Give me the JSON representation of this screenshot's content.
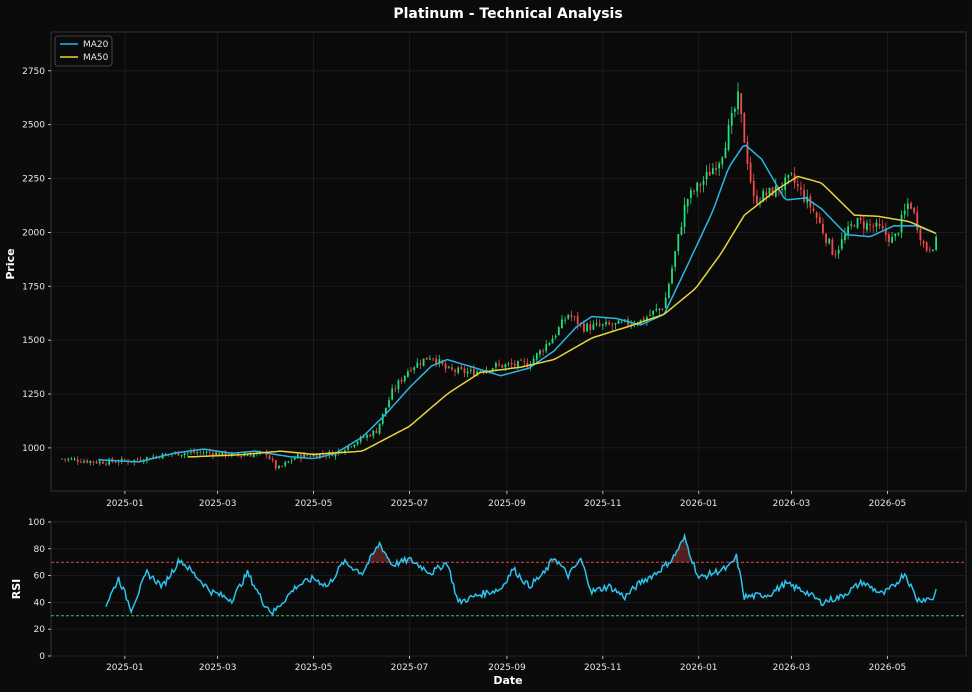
{
  "colors": {
    "background": "#0b0b0b",
    "panel": "#0a0a0a",
    "up": "#21e07a",
    "down": "#f24b4b",
    "ma20": "#29b6e6",
    "ma50": "#e6d43a",
    "rsi": "#29c4f0",
    "overbought": "#e04848",
    "oversold": "#28c878"
  },
  "chart_data": [
    {
      "type": "candlestick",
      "title": "Platinum - Technical Analysis",
      "ylabel": "Price",
      "xlabel": "",
      "x_range": [
        "2024-11-15",
        "2026-06-20"
      ],
      "ylim": [
        800,
        2930
      ],
      "y_ticks": [
        1000,
        1250,
        1500,
        1750,
        2000,
        2250,
        2500,
        2750
      ],
      "x_ticks": [
        "2025-01",
        "2025-03",
        "2025-05",
        "2025-07",
        "2025-09",
        "2025-11",
        "2026-01",
        "2026-03",
        "2026-05"
      ],
      "grid": true,
      "legend_position": "top-left",
      "legend": [
        "MA20",
        "MA50"
      ],
      "close_anchors": [
        [
          "2024-11-22",
          950
        ],
        [
          "2024-12-15",
          935
        ],
        [
          "2025-01-05",
          940
        ],
        [
          "2025-02-01",
          975
        ],
        [
          "2025-02-20",
          980
        ],
        [
          "2025-03-15",
          965
        ],
        [
          "2025-04-01",
          975
        ],
        [
          "2025-04-08",
          900
        ],
        [
          "2025-04-20",
          960
        ],
        [
          "2025-05-15",
          975
        ],
        [
          "2025-05-28",
          1030
        ],
        [
          "2025-06-10",
          1080
        ],
        [
          "2025-06-20",
          1260
        ],
        [
          "2025-07-01",
          1370
        ],
        [
          "2025-07-15",
          1430
        ],
        [
          "2025-07-25",
          1360
        ],
        [
          "2025-08-10",
          1350
        ],
        [
          "2025-08-25",
          1380
        ],
        [
          "2025-09-15",
          1390
        ],
        [
          "2025-10-01",
          1520
        ],
        [
          "2025-10-10",
          1620
        ],
        [
          "2025-10-20",
          1560
        ],
        [
          "2025-11-10",
          1570
        ],
        [
          "2025-11-25",
          1590
        ],
        [
          "2025-12-10",
          1660
        ],
        [
          "2025-12-24",
          2150
        ],
        [
          "2026-01-05",
          2250
        ],
        [
          "2026-01-15",
          2350
        ],
        [
          "2026-01-26",
          2620
        ],
        [
          "2026-02-05",
          2150
        ],
        [
          "2026-02-20",
          2200
        ],
        [
          "2026-03-01",
          2250
        ],
        [
          "2026-03-15",
          2100
        ],
        [
          "2026-03-28",
          1900
        ],
        [
          "2026-04-10",
          2050
        ],
        [
          "2026-04-25",
          2020
        ],
        [
          "2026-05-05",
          1960
        ],
        [
          "2026-05-15",
          2150
        ],
        [
          "2026-05-25",
          1920
        ],
        [
          "2026-06-01",
          1955
        ]
      ],
      "ma20_anchors": [
        [
          "2024-12-15",
          945
        ],
        [
          "2025-01-10",
          935
        ],
        [
          "2025-02-01",
          975
        ],
        [
          "2025-02-20",
          995
        ],
        [
          "2025-03-10",
          975
        ],
        [
          "2025-03-25",
          985
        ],
        [
          "2025-04-15",
          960
        ],
        [
          "2025-05-01",
          950
        ],
        [
          "2025-05-15",
          975
        ],
        [
          "2025-06-01",
          1050
        ],
        [
          "2025-06-15",
          1150
        ],
        [
          "2025-07-01",
          1280
        ],
        [
          "2025-07-15",
          1380
        ],
        [
          "2025-07-25",
          1410
        ],
        [
          "2025-08-10",
          1375
        ],
        [
          "2025-08-28",
          1335
        ],
        [
          "2025-09-15",
          1370
        ],
        [
          "2025-10-01",
          1450
        ],
        [
          "2025-10-15",
          1560
        ],
        [
          "2025-10-25",
          1610
        ],
        [
          "2025-11-10",
          1600
        ],
        [
          "2025-11-25",
          1570
        ],
        [
          "2025-12-10",
          1620
        ],
        [
          "2025-12-25",
          1850
        ],
        [
          "2026-01-10",
          2100
        ],
        [
          "2026-01-20",
          2300
        ],
        [
          "2026-01-30",
          2410
        ],
        [
          "2026-02-10",
          2340
        ],
        [
          "2026-02-25",
          2150
        ],
        [
          "2026-03-10",
          2160
        ],
        [
          "2026-03-20",
          2110
        ],
        [
          "2026-04-05",
          1990
        ],
        [
          "2026-04-20",
          1980
        ],
        [
          "2026-05-05",
          2030
        ],
        [
          "2026-05-20",
          2030
        ],
        [
          "2026-06-01",
          1995
        ]
      ],
      "ma50_anchors": [
        [
          "2025-02-10",
          958
        ],
        [
          "2025-03-15",
          968
        ],
        [
          "2025-04-10",
          985
        ],
        [
          "2025-05-01",
          970
        ],
        [
          "2025-06-01",
          985
        ],
        [
          "2025-07-01",
          1100
        ],
        [
          "2025-07-25",
          1250
        ],
        [
          "2025-08-15",
          1350
        ],
        [
          "2025-09-10",
          1375
        ],
        [
          "2025-10-01",
          1410
        ],
        [
          "2025-10-25",
          1510
        ],
        [
          "2025-11-20",
          1570
        ],
        [
          "2025-12-10",
          1620
        ],
        [
          "2025-12-30",
          1740
        ],
        [
          "2026-01-15",
          1900
        ],
        [
          "2026-01-30",
          2080
        ],
        [
          "2026-02-20",
          2200
        ],
        [
          "2026-03-05",
          2260
        ],
        [
          "2026-03-20",
          2230
        ],
        [
          "2026-04-10",
          2080
        ],
        [
          "2026-04-25",
          2075
        ],
        [
          "2026-05-15",
          2050
        ],
        [
          "2026-06-01",
          1995
        ]
      ]
    },
    {
      "type": "line",
      "title": "",
      "ylabel": "RSI",
      "xlabel": "Date",
      "ylim": [
        0,
        100
      ],
      "y_ticks": [
        0,
        20,
        40,
        60,
        80,
        100
      ],
      "x_ticks": [
        "2025-01",
        "2025-03",
        "2025-05",
        "2025-07",
        "2025-09",
        "2025-11",
        "2026-01",
        "2026-03",
        "2026-05"
      ],
      "overbought": 70,
      "oversold": 30,
      "grid": true,
      "rsi_anchors": [
        [
          "2024-12-20",
          38
        ],
        [
          "2024-12-28",
          58
        ],
        [
          "2025-01-05",
          35
        ],
        [
          "2025-01-15",
          62
        ],
        [
          "2025-01-25",
          52
        ],
        [
          "2025-02-05",
          72
        ],
        [
          "2025-02-15",
          60
        ],
        [
          "2025-02-25",
          48
        ],
        [
          "2025-03-10",
          42
        ],
        [
          "2025-03-20",
          62
        ],
        [
          "2025-03-30",
          40
        ],
        [
          "2025-04-05",
          32
        ],
        [
          "2025-04-20",
          52
        ],
        [
          "2025-05-01",
          58
        ],
        [
          "2025-05-10",
          52
        ],
        [
          "2025-05-20",
          70
        ],
        [
          "2025-06-01",
          62
        ],
        [
          "2025-06-12",
          84
        ],
        [
          "2025-06-20",
          68
        ],
        [
          "2025-07-01",
          72
        ],
        [
          "2025-07-15",
          62
        ],
        [
          "2025-07-25",
          70
        ],
        [
          "2025-08-01",
          40
        ],
        [
          "2025-08-15",
          46
        ],
        [
          "2025-08-28",
          50
        ],
        [
          "2025-09-05",
          65
        ],
        [
          "2025-09-15",
          52
        ],
        [
          "2025-09-25",
          62
        ],
        [
          "2025-10-01",
          74
        ],
        [
          "2025-10-10",
          60
        ],
        [
          "2025-10-18",
          72
        ],
        [
          "2025-10-25",
          48
        ],
        [
          "2025-11-05",
          52
        ],
        [
          "2025-11-15",
          44
        ],
        [
          "2025-11-25",
          55
        ],
        [
          "2025-12-05",
          62
        ],
        [
          "2025-12-15",
          72
        ],
        [
          "2025-12-23",
          88
        ],
        [
          "2026-01-01",
          58
        ],
        [
          "2026-01-10",
          62
        ],
        [
          "2026-01-20",
          66
        ],
        [
          "2026-01-25",
          74
        ],
        [
          "2026-01-30",
          44
        ],
        [
          "2026-02-15",
          46
        ],
        [
          "2026-02-25",
          54
        ],
        [
          "2026-03-10",
          48
        ],
        [
          "2026-03-20",
          40
        ],
        [
          "2026-04-01",
          44
        ],
        [
          "2026-04-15",
          55
        ],
        [
          "2026-04-28",
          46
        ],
        [
          "2026-05-05",
          52
        ],
        [
          "2026-05-12",
          62
        ],
        [
          "2026-05-20",
          42
        ],
        [
          "2026-05-30",
          43
        ],
        [
          "2026-06-01",
          49
        ]
      ]
    }
  ],
  "labels": {
    "title": "Platinum - Technical Analysis",
    "price_ylabel": "Price",
    "rsi_ylabel": "RSI",
    "xlabel": "Date",
    "legend_ma20": "MA20",
    "legend_ma50": "MA50"
  }
}
